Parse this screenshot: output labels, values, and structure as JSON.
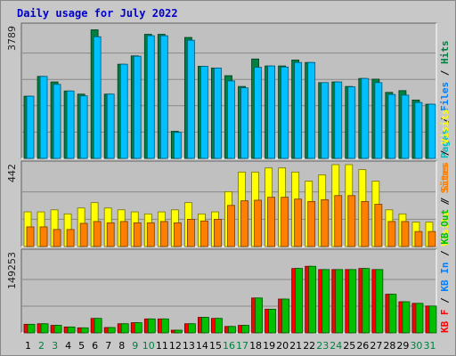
{
  "title": "Daily usage for July 2022",
  "colors": {
    "background": "#c8c8c8",
    "plot": "#c0c0c0",
    "title": "#0000cc",
    "hits": "#008040",
    "files": "#00c0ff",
    "pages": "#00b0b0",
    "visits": "#ffff00",
    "sites": "#ff8000",
    "kbin": "#ff0000",
    "kbout": "#00c000",
    "weekday_tick": "#000000",
    "weekend_tick": "#008040"
  },
  "chart_data": [
    {
      "type": "bar",
      "panel": "top",
      "ymax_label": "3789",
      "ylim": [
        0,
        3789
      ],
      "legend": [
        {
          "name": "Pages",
          "color": "#00c0c0"
        },
        {
          "name": "Files",
          "color": "#0080ff"
        },
        {
          "name": "Hits",
          "color": "#008040"
        }
      ],
      "series": [
        {
          "name": "Hits",
          "values": [
            1790,
            2360,
            2200,
            1940,
            1850,
            3700,
            1850,
            2710,
            2950,
            3570,
            3570,
            780,
            3480,
            2650,
            2600,
            2380,
            2070,
            2860,
            2660,
            2660,
            2830,
            2760,
            2180,
            2200,
            2070,
            2300,
            2280,
            1900,
            1950,
            1680,
            1560
          ]
        },
        {
          "name": "Files",
          "values": [
            1790,
            2360,
            2130,
            1940,
            1800,
            3500,
            1850,
            2710,
            2940,
            3530,
            3530,
            750,
            3400,
            2650,
            2600,
            2230,
            2030,
            2620,
            2660,
            2630,
            2760,
            2760,
            2180,
            2200,
            2060,
            2300,
            2180,
            1840,
            1820,
            1610,
            1560
          ]
        }
      ]
    },
    {
      "type": "bar",
      "panel": "middle",
      "ymax_label": "442",
      "ylim": [
        0,
        442
      ],
      "legend": [
        {
          "name": "Visits",
          "color": "#ffff00"
        },
        {
          "name": "Sites",
          "color": "#ff8000"
        }
      ],
      "series": [
        {
          "name": "Visits",
          "values": [
            187,
            187,
            198,
            176,
            208,
            237,
            208,
            198,
            187,
            176,
            187,
            198,
            237,
            176,
            187,
            296,
            402,
            402,
            424,
            424,
            402,
            353,
            387,
            442,
            442,
            415,
            353,
            198,
            176,
            132,
            132
          ]
        },
        {
          "name": "Sites",
          "values": [
            106,
            106,
            92,
            92,
            125,
            135,
            128,
            135,
            128,
            128,
            135,
            128,
            147,
            138,
            147,
            222,
            247,
            250,
            266,
            266,
            256,
            243,
            253,
            275,
            275,
            243,
            228,
            135,
            135,
            81,
            81
          ]
        }
      ]
    },
    {
      "type": "bar",
      "panel": "bottom",
      "ymax_label": "149253",
      "ylim": [
        0,
        149253
      ],
      "legend": [
        {
          "name": "KB F",
          "color": "#ff0000"
        },
        {
          "name": "KB In",
          "color": "#0080ff"
        },
        {
          "name": "KB Out",
          "color": "#00c000"
        },
        {
          "name": "Sites",
          "color": "#ff8000"
        },
        {
          "name": "Visits",
          "color": "#ffff00"
        }
      ],
      "series": [
        {
          "name": "KB F",
          "values": [
            16000,
            17000,
            14000,
            11000,
            9400,
            27000,
            10000,
            17000,
            19000,
            26000,
            26000,
            5000,
            17000,
            29000,
            27000,
            12000,
            14000,
            65000,
            44000,
            63000,
            120000,
            124000,
            118000,
            118000,
            118000,
            120000,
            118000,
            72000,
            58000,
            55000,
            50000
          ]
        },
        {
          "name": "KB Out",
          "values": [
            16000,
            17000,
            14000,
            11000,
            9400,
            27000,
            10000,
            17000,
            19000,
            26000,
            26000,
            5000,
            17000,
            29000,
            27000,
            12000,
            14000,
            65000,
            44000,
            63000,
            120000,
            124000,
            118000,
            118000,
            118000,
            120000,
            118000,
            72000,
            58000,
            55000,
            50000
          ]
        }
      ]
    }
  ],
  "days": [
    "1",
    "2",
    "3",
    "4",
    "5",
    "6",
    "7",
    "8",
    "9",
    "10",
    "11",
    "12",
    "13",
    "14",
    "15",
    "16",
    "17",
    "18",
    "19",
    "20",
    "21",
    "22",
    "23",
    "24",
    "25",
    "26",
    "27",
    "28",
    "29",
    "30",
    "31"
  ],
  "weekend_days": [
    2,
    3,
    9,
    10,
    16,
    17,
    23,
    24,
    30,
    31
  ]
}
